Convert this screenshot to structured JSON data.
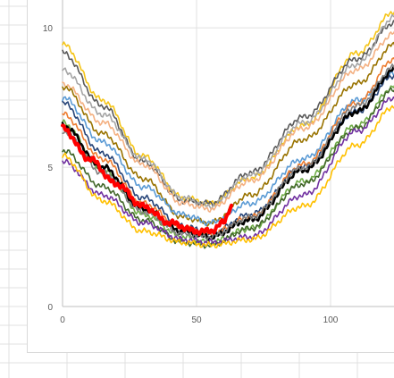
{
  "chart_data": {
    "type": "line",
    "title": "",
    "xlabel": "",
    "ylabel": "",
    "xlim": [
      0,
      124
    ],
    "ylim": [
      0,
      11
    ],
    "x_ticks": [
      0,
      50,
      100
    ],
    "y_ticks": [
      0,
      5,
      10
    ],
    "x_tick_labels": [
      "0",
      "50",
      "100"
    ],
    "y_tick_labels": [
      "0",
      "5",
      "10"
    ],
    "grid": "both",
    "legend": "none",
    "series": [
      {
        "color": "#f5c518",
        "values": [
          [
            0,
            9.4
          ],
          [
            15,
            7.4
          ],
          [
            30,
            5.4
          ],
          [
            45,
            3.9
          ],
          [
            55,
            3.7
          ],
          [
            70,
            4.6
          ],
          [
            90,
            6.5
          ],
          [
            110,
            9.1
          ],
          [
            124,
            10.6
          ]
        ]
      },
      {
        "color": "#595959",
        "values": [
          [
            0,
            9.1
          ],
          [
            15,
            7.2
          ],
          [
            30,
            5.2
          ],
          [
            45,
            3.8
          ],
          [
            55,
            3.7
          ],
          [
            70,
            4.8
          ],
          [
            90,
            6.8
          ],
          [
            110,
            8.9
          ],
          [
            124,
            10.2
          ]
        ]
      },
      {
        "color": "#a5a5a5",
        "values": [
          [
            0,
            8.5
          ],
          [
            15,
            6.9
          ],
          [
            30,
            5.3
          ],
          [
            45,
            3.9
          ],
          [
            55,
            3.6
          ],
          [
            70,
            4.7
          ],
          [
            90,
            6.6
          ],
          [
            110,
            8.7
          ],
          [
            124,
            10.4
          ]
        ]
      },
      {
        "color": "#f4b183",
        "values": [
          [
            0,
            8.0
          ],
          [
            15,
            6.6
          ],
          [
            30,
            5.1
          ],
          [
            45,
            3.7
          ],
          [
            55,
            3.5
          ],
          [
            70,
            4.5
          ],
          [
            90,
            6.4
          ],
          [
            110,
            8.5
          ],
          [
            124,
            9.8
          ]
        ]
      },
      {
        "color": "#997300",
        "values": [
          [
            0,
            7.9
          ],
          [
            15,
            6.2
          ],
          [
            30,
            4.6
          ],
          [
            45,
            3.2
          ],
          [
            55,
            3.0
          ],
          [
            70,
            4.0
          ],
          [
            90,
            6.0
          ],
          [
            110,
            8.0
          ],
          [
            124,
            9.4
          ]
        ]
      },
      {
        "color": "#5b9bd5",
        "values": [
          [
            0,
            7.5
          ],
          [
            15,
            5.9
          ],
          [
            30,
            4.3
          ],
          [
            45,
            3.3
          ],
          [
            55,
            3.0
          ],
          [
            70,
            3.7
          ],
          [
            90,
            5.3
          ],
          [
            110,
            7.4
          ],
          [
            124,
            8.4
          ]
        ]
      },
      {
        "color": "#264478",
        "values": [
          [
            0,
            7.3
          ],
          [
            15,
            5.5
          ],
          [
            30,
            3.9
          ],
          [
            45,
            2.9
          ],
          [
            55,
            2.6
          ],
          [
            70,
            3.3
          ],
          [
            90,
            5.0
          ],
          [
            110,
            7.0
          ],
          [
            124,
            8.3
          ]
        ]
      },
      {
        "color": "#ed7d31",
        "values": [
          [
            0,
            6.9
          ],
          [
            15,
            5.3
          ],
          [
            30,
            3.7
          ],
          [
            45,
            2.8
          ],
          [
            55,
            2.6
          ],
          [
            70,
            3.2
          ],
          [
            90,
            5.1
          ],
          [
            110,
            7.3
          ],
          [
            124,
            8.9
          ]
        ]
      },
      {
        "color": "#70ad47",
        "values": [
          [
            0,
            6.6
          ],
          [
            15,
            4.9
          ],
          [
            30,
            3.3
          ],
          [
            45,
            2.5
          ],
          [
            55,
            2.3
          ],
          [
            70,
            2.8
          ],
          [
            90,
            4.5
          ],
          [
            110,
            6.5
          ],
          [
            124,
            7.9
          ]
        ]
      },
      {
        "color": "#000000",
        "values": [
          [
            0,
            6.5
          ],
          [
            15,
            5.0
          ],
          [
            30,
            3.5
          ],
          [
            45,
            2.7
          ],
          [
            55,
            2.5
          ],
          [
            70,
            3.1
          ],
          [
            90,
            4.9
          ],
          [
            110,
            7.0
          ],
          [
            124,
            8.5
          ]
        ]
      },
      {
        "color": "#7f7f7f",
        "values": [
          [
            0,
            6.3
          ],
          [
            15,
            4.8
          ],
          [
            30,
            3.4
          ],
          [
            45,
            2.6
          ],
          [
            55,
            2.5
          ],
          [
            70,
            3.2
          ],
          [
            90,
            5.0
          ],
          [
            110,
            7.2
          ],
          [
            124,
            8.6
          ]
        ]
      },
      {
        "color": "#43682b",
        "values": [
          [
            0,
            5.6
          ],
          [
            15,
            4.3
          ],
          [
            30,
            3.1
          ],
          [
            45,
            2.3
          ],
          [
            55,
            2.2
          ],
          [
            70,
            2.8
          ],
          [
            90,
            4.4
          ],
          [
            110,
            6.4
          ],
          [
            124,
            7.8
          ]
        ]
      },
      {
        "color": "#7030a0",
        "values": [
          [
            0,
            5.2
          ],
          [
            15,
            4.0
          ],
          [
            30,
            3.0
          ],
          [
            45,
            2.4
          ],
          [
            55,
            2.3
          ],
          [
            70,
            2.5
          ],
          [
            90,
            4.0
          ],
          [
            110,
            6.3
          ],
          [
            124,
            7.5
          ]
        ]
      },
      {
        "color": "#ffc000",
        "values": [
          [
            0,
            5.4
          ],
          [
            15,
            3.8
          ],
          [
            30,
            2.7
          ],
          [
            45,
            2.3
          ],
          [
            55,
            2.2
          ],
          [
            70,
            2.4
          ],
          [
            90,
            3.6
          ],
          [
            110,
            5.8
          ],
          [
            124,
            7.2
          ]
        ]
      },
      {
        "color": "#ff0000",
        "values": [
          [
            0,
            6.4
          ],
          [
            10,
            5.3
          ],
          [
            20,
            4.4
          ],
          [
            30,
            3.6
          ],
          [
            40,
            3.0
          ],
          [
            50,
            2.7
          ],
          [
            55,
            2.7
          ],
          [
            60,
            3.0
          ],
          [
            63,
            3.6
          ]
        ]
      }
    ]
  }
}
